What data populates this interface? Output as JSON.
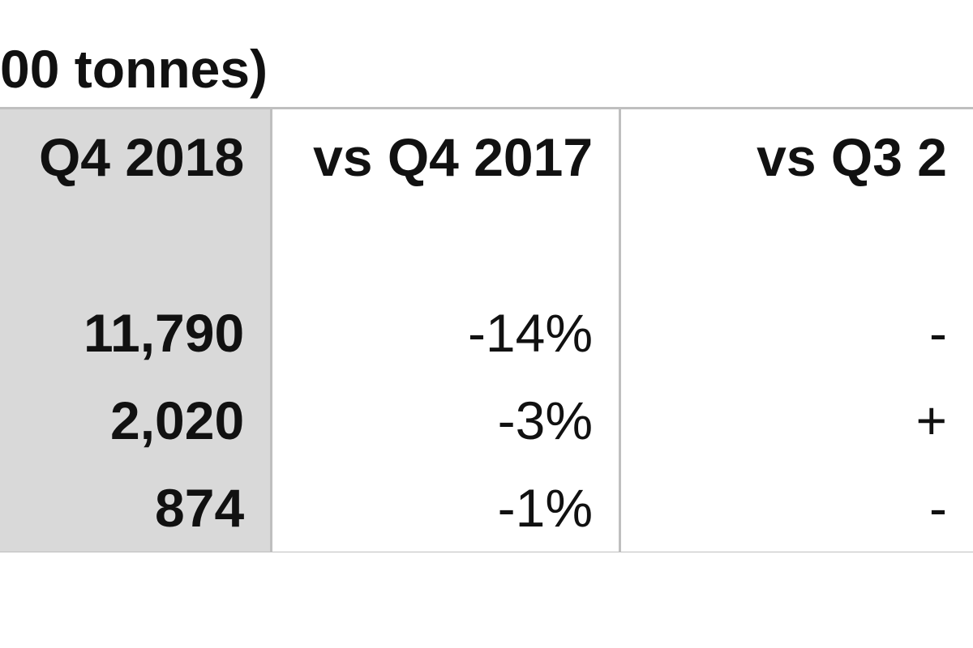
{
  "document": {
    "title": "00 tonnes)"
  },
  "table": {
    "headers": [
      "Q4 2018",
      "vs Q4 2017",
      "vs Q3 2"
    ],
    "rows": [
      {
        "value": "11,790",
        "vs_q4_2017": "-14%",
        "vs_q3": "-"
      },
      {
        "value": "2,020",
        "vs_q4_2017": "-3%",
        "vs_q3": "+"
      },
      {
        "value": "874",
        "vs_q4_2017": "-1%",
        "vs_q3": "-"
      }
    ]
  }
}
